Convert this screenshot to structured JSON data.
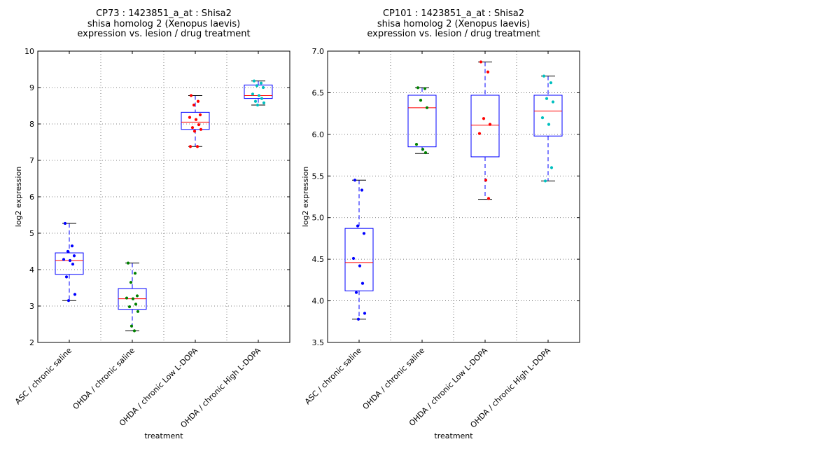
{
  "chart_data": [
    {
      "type": "box",
      "title_lines": [
        "CP73 : 1423851_a_at : Shisa2",
        "shisa homolog 2 (Xenopus laevis)",
        "expression vs. lesion / drug treatment"
      ],
      "xlabel": "treatment",
      "ylabel": "log2 expression",
      "ylim": [
        2,
        10
      ],
      "yticks": [
        2,
        3,
        4,
        5,
        6,
        7,
        8,
        9,
        10
      ],
      "ytick_labels": [
        "2",
        "3",
        "4",
        "5",
        "6",
        "7",
        "8",
        "9",
        "10"
      ],
      "grid": true,
      "categories": [
        "ASC / chronic saline",
        "OHDA / chronic saline",
        "OHDA / chronic Low L-DOPA",
        "OHDA / chronic High L-DOPA"
      ],
      "boxes": [
        {
          "whisker_low": 3.15,
          "q1": 3.87,
          "median": 4.25,
          "q3": 4.46,
          "whisker_high": 5.27,
          "color": "#0000ff",
          "points": [
            5.27,
            4.65,
            4.5,
            4.38,
            4.28,
            4.25,
            4.15,
            3.8,
            3.32,
            3.15
          ]
        },
        {
          "whisker_low": 2.32,
          "q1": 2.91,
          "median": 3.2,
          "q3": 3.48,
          "whisker_high": 4.18,
          "color": "#008000",
          "points": [
            4.18,
            3.9,
            3.65,
            3.28,
            3.22,
            3.2,
            3.05,
            2.98,
            2.85,
            2.45,
            2.32
          ]
        },
        {
          "whisker_low": 7.38,
          "q1": 7.85,
          "median": 8.05,
          "q3": 8.32,
          "whisker_high": 8.78,
          "color": "#ff0000",
          "points": [
            8.78,
            8.62,
            8.52,
            8.25,
            8.18,
            8.12,
            7.98,
            7.9,
            7.85,
            7.8,
            7.38,
            7.38
          ]
        },
        {
          "whisker_low": 8.52,
          "q1": 8.7,
          "median": 8.78,
          "q3": 9.07,
          "whisker_high": 9.18,
          "color": "#00bfbf",
          "points": [
            9.18,
            9.12,
            9.05,
            9.0,
            8.82,
            8.78,
            8.7,
            8.62,
            8.58,
            8.52
          ]
        }
      ]
    },
    {
      "type": "box",
      "title_lines": [
        "CP101 : 1423851_a_at : Shisa2",
        "shisa homolog 2 (Xenopus laevis)",
        "expression vs. lesion / drug treatment"
      ],
      "xlabel": "treatment",
      "ylabel": "log2 expression",
      "ylim": [
        3.5,
        7.0
      ],
      "yticks": [
        3.5,
        4.0,
        4.5,
        5.0,
        5.5,
        6.0,
        6.5,
        7.0
      ],
      "ytick_labels": [
        "3.5",
        "4.0",
        "4.5",
        "5.0",
        "5.5",
        "6.0",
        "6.5",
        "7.0"
      ],
      "grid": true,
      "categories": [
        "ASC / chronic saline",
        "OHDA / chronic saline",
        "OHDA / chronic Low L-DOPA",
        "OHDA / chronic High L-DOPA"
      ],
      "boxes": [
        {
          "whisker_low": 3.78,
          "q1": 4.12,
          "median": 4.46,
          "q3": 4.87,
          "whisker_high": 5.45,
          "color": "#0000ff",
          "points": [
            5.45,
            5.33,
            4.9,
            4.81,
            4.51,
            4.42,
            4.21,
            4.1,
            3.85,
            3.78
          ]
        },
        {
          "whisker_low": 5.77,
          "q1": 5.85,
          "median": 6.32,
          "q3": 6.47,
          "whisker_high": 6.56,
          "color": "#008000",
          "points": [
            6.56,
            6.55,
            6.41,
            6.32,
            5.88,
            5.82,
            5.78
          ]
        },
        {
          "whisker_low": 5.22,
          "q1": 5.73,
          "median": 6.11,
          "q3": 6.47,
          "whisker_high": 6.87,
          "color": "#ff0000",
          "points": [
            6.87,
            6.75,
            6.19,
            6.12,
            6.01,
            5.45,
            5.23
          ]
        },
        {
          "whisker_low": 5.44,
          "q1": 5.98,
          "median": 6.28,
          "q3": 6.47,
          "whisker_high": 6.7,
          "color": "#00bfbf",
          "points": [
            6.7,
            6.62,
            6.43,
            6.39,
            6.2,
            6.12,
            5.6,
            5.44
          ]
        }
      ]
    }
  ]
}
